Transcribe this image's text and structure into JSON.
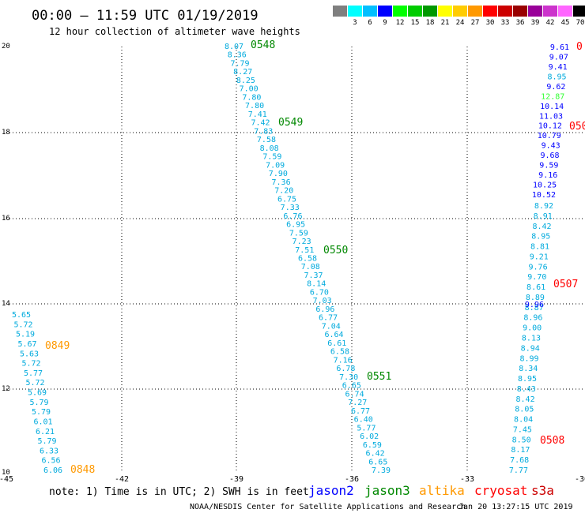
{
  "header": {
    "title": "00:00 — 11:59 UTC 01/19/2019",
    "subtitle": "12 hour collection of altimeter wave heights"
  },
  "legend": {
    "unit": "(ft)",
    "swatches": [
      {
        "label": "",
        "color": "#7f7f7f"
      },
      {
        "label": "3",
        "color": "#00ffff"
      },
      {
        "label": "6",
        "color": "#00bfff"
      },
      {
        "label": "9",
        "color": "#0000ff"
      },
      {
        "label": "12",
        "color": "#00ff00"
      },
      {
        "label": "15",
        "color": "#00cc00"
      },
      {
        "label": "18",
        "color": "#009900"
      },
      {
        "label": "21",
        "color": "#ffff00"
      },
      {
        "label": "24",
        "color": "#ffcc00"
      },
      {
        "label": "27",
        "color": "#ff9900"
      },
      {
        "label": "30",
        "color": "#ff0000"
      },
      {
        "label": "33",
        "color": "#cc0000"
      },
      {
        "label": "36",
        "color": "#990000"
      },
      {
        "label": "39",
        "color": "#990099"
      },
      {
        "label": "42",
        "color": "#cc33cc"
      },
      {
        "label": "45",
        "color": "#ff66ff"
      },
      {
        "label": "70",
        "color": "#000000"
      }
    ]
  },
  "map": {
    "x_ticks": [
      "-45",
      "-42",
      "-39",
      "-36",
      "-33",
      "-30"
    ],
    "y_ticks": [
      "20",
      "18",
      "16",
      "14",
      "12",
      "10"
    ]
  },
  "tracks": [
    {
      "color": "#00aadd",
      "values": [
        "5.65",
        "5.72",
        "5.19",
        "5.67",
        "5.63",
        "5.72",
        "5.77",
        "5.72",
        "5.69",
        "5.79",
        "5.79",
        "6.01",
        "6.21",
        "5.79",
        "6.33",
        "6.56",
        "6.06"
      ]
    },
    {
      "color": "#00aadd",
      "values": [
        "8.07",
        "8.36",
        "7.79",
        "8.27",
        "8.25",
        "7.00",
        "7.80",
        "7.80",
        "7.41",
        "7.42",
        "7.83",
        "7.58",
        "8.08",
        "7.59",
        "7.09",
        "7.90",
        "7.36",
        "7.20",
        "6.75",
        "7.33",
        "6.76",
        "6.95",
        "7.59",
        "7.23",
        "7.51",
        "6.58",
        "7.08",
        "7.37",
        "8.14",
        "6.70",
        "7.03",
        "6.96",
        "6.77",
        "7.04",
        "6.64",
        "6.61",
        "6.58",
        "7.16",
        "6.78",
        "7.30",
        "6.65",
        "6.74",
        "7.27",
        "6.77",
        "6.40",
        "5.77",
        "6.02",
        "6.59",
        "6.42",
        "6.65",
        "7.39"
      ]
    },
    {
      "color": "#00aadd",
      "values": [
        "8.92",
        "8.91",
        "8.42",
        "8.95",
        "8.81",
        "9.21",
        "9.76",
        "9.70",
        "8.61",
        "8.89",
        "8.87",
        "8.96",
        "9.00",
        "8.13",
        "8.94",
        "8.99",
        "8.34",
        "8.95",
        "8.43",
        "8.42",
        "8.05",
        "8.04",
        "7.45",
        "8.50",
        "8.17",
        "7.68",
        "7.77"
      ]
    }
  ],
  "mixed_track": [
    {
      "v": "9.61",
      "c": "#0000ff"
    },
    {
      "v": "9.07",
      "c": "#0000ff"
    },
    {
      "v": "9.41",
      "c": "#0000ff"
    },
    {
      "v": "8.95",
      "c": "#00aadd"
    },
    {
      "v": "9.62",
      "c": "#0000ff"
    },
    {
      "v": "12.87",
      "c": "#33ff33"
    },
    {
      "v": "10.14",
      "c": "#0000ff"
    },
    {
      "v": "11.03",
      "c": "#0000ff"
    },
    {
      "v": "10.12",
      "c": "#0000ff"
    },
    {
      "v": "10.79",
      "c": "#0000ff"
    },
    {
      "v": "9.43",
      "c": "#0000ff"
    },
    {
      "v": "9.68",
      "c": "#0000ff"
    },
    {
      "v": "9.59",
      "c": "#0000ff"
    },
    {
      "v": "9.16",
      "c": "#0000ff"
    },
    {
      "v": "10.25",
      "c": "#0000ff"
    },
    {
      "v": "10.52",
      "c": "#0000ff"
    }
  ],
  "extra_labels": [
    {
      "v": "9.96",
      "c": "#0000ff"
    }
  ],
  "pass_labels": [
    {
      "text": "0548",
      "color": "#008800"
    },
    {
      "text": "0549",
      "color": "#008800"
    },
    {
      "text": "0550",
      "color": "#008800"
    },
    {
      "text": "0551",
      "color": "#008800"
    },
    {
      "text": "0849",
      "color": "#ff9900"
    },
    {
      "text": "0848",
      "color": "#ff9900"
    },
    {
      "text": "0",
      "color": "#ff0000"
    },
    {
      "text": "050",
      "color": "#ff0000"
    },
    {
      "text": "0507",
      "color": "#ff0000"
    },
    {
      "text": "0508",
      "color": "#ff0000"
    }
  ],
  "footer": {
    "note": "note: 1) Time is in UTC; 2) SWH is in feet",
    "satellites": [
      {
        "name": "jason2",
        "color": "#0000ff"
      },
      {
        "name": "jason3",
        "color": "#008800"
      },
      {
        "name": "altika",
        "color": "#ff9900"
      },
      {
        "name": "cryosat",
        "color": "#ff0000"
      },
      {
        "name": "s3a",
        "color": "#cc0000"
      }
    ],
    "credit": "NOAA/NESDIS Center for Satellite Applications and Research",
    "generated": "Jan 20 13:27:15 UTC 2019"
  }
}
